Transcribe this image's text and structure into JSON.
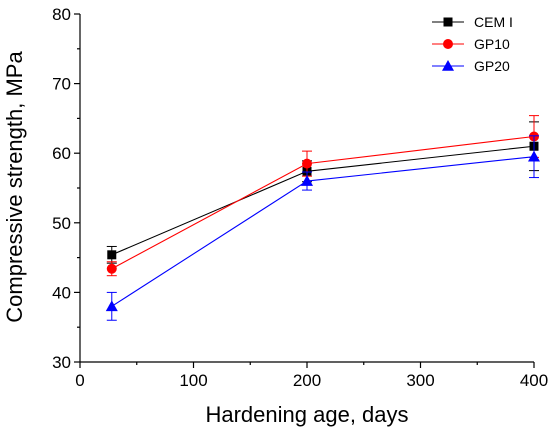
{
  "chart_data": {
    "type": "line",
    "xlabel": "Hardening age, days",
    "ylabel": "Compressive strength, MPa",
    "xlim": [
      0,
      400
    ],
    "ylim": [
      30,
      80
    ],
    "xticks": [
      0,
      100,
      200,
      300,
      400
    ],
    "yticks": [
      30,
      40,
      50,
      60,
      70,
      80
    ],
    "grid": false,
    "legend_position": "top-right",
    "x": [
      28,
      200,
      400
    ],
    "series": [
      {
        "name": "CEM I",
        "color": "#000000",
        "marker": "square",
        "values": [
          45.4,
          57.4,
          61.0
        ],
        "errors": [
          1.2,
          1.5,
          3.5
        ]
      },
      {
        "name": "GP10",
        "color": "#ff0000",
        "marker": "circle",
        "values": [
          43.4,
          58.5,
          62.4
        ],
        "errors": [
          1.0,
          1.8,
          3.0
        ]
      },
      {
        "name": "GP20",
        "color": "#0000ff",
        "marker": "triangle",
        "values": [
          38.0,
          56.0,
          59.5
        ],
        "errors": [
          2.0,
          1.3,
          3.0
        ]
      }
    ]
  }
}
